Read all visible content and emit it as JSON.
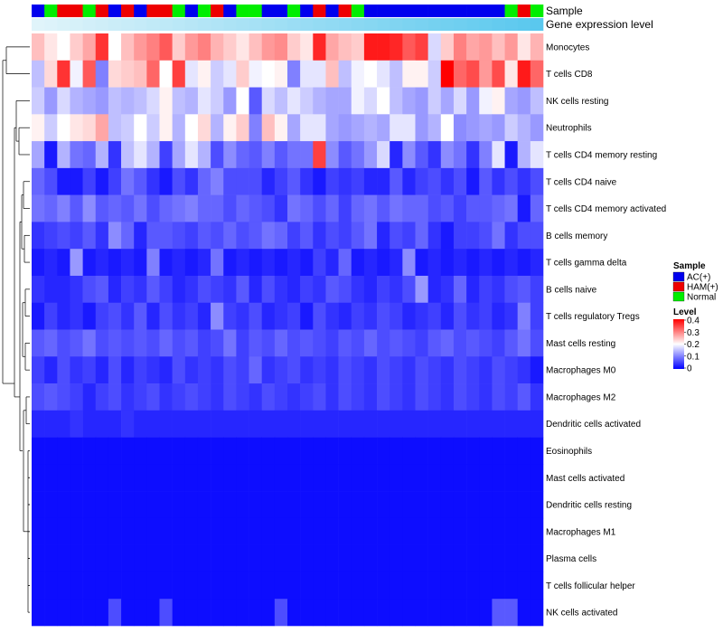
{
  "chart_data": {
    "type": "heatmap",
    "annotation_labels": {
      "sample": "Sample",
      "expression": "Gene expression level"
    },
    "sample_groups": [
      "AC(+)",
      "HAM(+)",
      "Normal"
    ],
    "sample_colors": {
      "AC(+)": "#0000ee",
      "HAM(+)": "#ee0000",
      "Normal": "#00ee00"
    },
    "column_samples": [
      "AC(+)",
      "Normal",
      "HAM(+)",
      "HAM(+)",
      "Normal",
      "HAM(+)",
      "AC(+)",
      "HAM(+)",
      "AC(+)",
      "HAM(+)",
      "HAM(+)",
      "Normal",
      "AC(+)",
      "Normal",
      "HAM(+)",
      "AC(+)",
      "Normal",
      "Normal",
      "AC(+)",
      "AC(+)",
      "Normal",
      "AC(+)",
      "HAM(+)",
      "AC(+)",
      "HAM(+)",
      "Normal",
      "AC(+)",
      "AC(+)",
      "AC(+)",
      "AC(+)",
      "AC(+)",
      "AC(+)",
      "AC(+)",
      "AC(+)",
      "AC(+)",
      "AC(+)",
      "AC(+)",
      "Normal",
      "HAM(+)",
      "Normal"
    ],
    "rows": [
      "Monocytes",
      "T cells CD8",
      "NK cells resting",
      "Neutrophils",
      "T cells CD4 memory resting",
      "T cells CD4 naive",
      "T cells CD4 memory activated",
      "B cells memory",
      "T cells gamma delta",
      "B cells naive",
      "T cells regulatory  Tregs",
      "Mast cells resting",
      "Macrophages M0",
      "Macrophages M2",
      "Dendritic cells activated",
      "Eosinophils",
      "Mast cells activated",
      "Dendritic cells resting",
      "Macrophages M1",
      "Plasma cells",
      "T cells follicular helper",
      "NK cells activated"
    ],
    "values": [
      [
        0.25,
        0.22,
        0.2,
        0.24,
        0.27,
        0.36,
        0.2,
        0.25,
        0.28,
        0.3,
        0.33,
        0.24,
        0.28,
        0.3,
        0.26,
        0.24,
        0.22,
        0.25,
        0.28,
        0.29,
        0.24,
        0.22,
        0.37,
        0.27,
        0.25,
        0.24,
        0.38,
        0.38,
        0.37,
        0.33,
        0.35,
        0.17,
        0.24,
        0.3,
        0.27,
        0.28,
        0.25,
        0.28,
        0.22,
        0.26
      ],
      [
        0.15,
        0.23,
        0.36,
        0.19,
        0.33,
        0.1,
        0.23,
        0.24,
        0.25,
        0.32,
        0.2,
        0.35,
        0.18,
        0.21,
        0.16,
        0.18,
        0.24,
        0.19,
        0.2,
        0.21,
        0.1,
        0.18,
        0.18,
        0.25,
        0.15,
        0.19,
        0.2,
        0.18,
        0.15,
        0.21,
        0.21,
        0.16,
        0.4,
        0.32,
        0.34,
        0.28,
        0.34,
        0.22,
        0.38,
        0.32
      ],
      [
        0.16,
        0.12,
        0.17,
        0.14,
        0.13,
        0.12,
        0.15,
        0.14,
        0.15,
        0.17,
        0.21,
        0.15,
        0.14,
        0.18,
        0.16,
        0.12,
        0.2,
        0.07,
        0.17,
        0.15,
        0.18,
        0.16,
        0.14,
        0.13,
        0.13,
        0.19,
        0.17,
        0.2,
        0.15,
        0.13,
        0.12,
        0.16,
        0.13,
        0.17,
        0.12,
        0.19,
        0.21,
        0.13,
        0.12,
        0.15
      ],
      [
        0.21,
        0.16,
        0.2,
        0.22,
        0.23,
        0.27,
        0.15,
        0.16,
        0.2,
        0.16,
        0.21,
        0.14,
        0.2,
        0.23,
        0.14,
        0.21,
        0.24,
        0.1,
        0.25,
        0.21,
        0.13,
        0.18,
        0.18,
        0.13,
        0.12,
        0.13,
        0.14,
        0.13,
        0.18,
        0.18,
        0.12,
        0.14,
        0.2,
        0.11,
        0.12,
        0.13,
        0.12,
        0.16,
        0.14,
        0.12
      ],
      [
        0.13,
        0.02,
        0.14,
        0.09,
        0.08,
        0.14,
        0.04,
        0.15,
        0.18,
        0.14,
        0.05,
        0.13,
        0.18,
        0.14,
        0.06,
        0.11,
        0.08,
        0.07,
        0.1,
        0.07,
        0.09,
        0.09,
        0.35,
        0.11,
        0.07,
        0.09,
        0.12,
        0.17,
        0.03,
        0.11,
        0.07,
        0.04,
        0.11,
        0.09,
        0.04,
        0.1,
        0.18,
        0.02,
        0.14,
        0.18
      ],
      [
        0.08,
        0.06,
        0.02,
        0.02,
        0.05,
        0.02,
        0.05,
        0.09,
        0.07,
        0.04,
        0.02,
        0.06,
        0.04,
        0.08,
        0.1,
        0.06,
        0.06,
        0.06,
        0.03,
        0.05,
        0.07,
        0.04,
        0.02,
        0.05,
        0.04,
        0.05,
        0.03,
        0.03,
        0.07,
        0.03,
        0.05,
        0.06,
        0.04,
        0.06,
        0.02,
        0.07,
        0.04,
        0.06,
        0.04,
        0.06
      ],
      [
        0.09,
        0.08,
        0.1,
        0.07,
        0.11,
        0.07,
        0.08,
        0.07,
        0.09,
        0.06,
        0.08,
        0.09,
        0.1,
        0.08,
        0.08,
        0.06,
        0.08,
        0.07,
        0.06,
        0.04,
        0.09,
        0.08,
        0.06,
        0.08,
        0.05,
        0.08,
        0.09,
        0.07,
        0.09,
        0.08,
        0.08,
        0.06,
        0.07,
        0.05,
        0.07,
        0.07,
        0.08,
        0.09,
        0.02,
        0.08
      ],
      [
        0.04,
        0.05,
        0.06,
        0.05,
        0.07,
        0.04,
        0.11,
        0.08,
        0.03,
        0.07,
        0.07,
        0.06,
        0.05,
        0.07,
        0.06,
        0.08,
        0.06,
        0.07,
        0.09,
        0.08,
        0.05,
        0.07,
        0.04,
        0.06,
        0.05,
        0.07,
        0.09,
        0.03,
        0.06,
        0.05,
        0.08,
        0.04,
        0.02,
        0.05,
        0.05,
        0.06,
        0.09,
        0.04,
        0.06,
        0.06
      ],
      [
        0.02,
        0.03,
        0.02,
        0.12,
        0.02,
        0.03,
        0.02,
        0.03,
        0.02,
        0.1,
        0.02,
        0.03,
        0.02,
        0.03,
        0.09,
        0.02,
        0.03,
        0.02,
        0.03,
        0.02,
        0.03,
        0.02,
        0.05,
        0.03,
        0.08,
        0.02,
        0.03,
        0.02,
        0.03,
        0.11,
        0.02,
        0.03,
        0.02,
        0.03,
        0.02,
        0.03,
        0.02,
        0.03,
        0.02,
        0.03
      ],
      [
        0.04,
        0.03,
        0.03,
        0.04,
        0.06,
        0.07,
        0.03,
        0.05,
        0.04,
        0.07,
        0.05,
        0.03,
        0.04,
        0.06,
        0.05,
        0.04,
        0.07,
        0.03,
        0.06,
        0.04,
        0.03,
        0.05,
        0.04,
        0.07,
        0.06,
        0.04,
        0.03,
        0.05,
        0.04,
        0.06,
        0.12,
        0.03,
        0.04,
        0.08,
        0.03,
        0.05,
        0.04,
        0.06,
        0.07,
        0.05
      ],
      [
        0.02,
        0.05,
        0.03,
        0.04,
        0.02,
        0.05,
        0.06,
        0.04,
        0.07,
        0.03,
        0.06,
        0.04,
        0.05,
        0.03,
        0.11,
        0.05,
        0.04,
        0.06,
        0.03,
        0.04,
        0.05,
        0.02,
        0.06,
        0.04,
        0.03,
        0.05,
        0.04,
        0.06,
        0.05,
        0.03,
        0.04,
        0.05,
        0.03,
        0.06,
        0.04,
        0.05,
        0.03,
        0.04,
        0.1,
        0.05
      ],
      [
        0.07,
        0.08,
        0.06,
        0.07,
        0.09,
        0.06,
        0.07,
        0.06,
        0.07,
        0.06,
        0.08,
        0.06,
        0.07,
        0.05,
        0.06,
        0.09,
        0.05,
        0.07,
        0.06,
        0.08,
        0.06,
        0.07,
        0.06,
        0.05,
        0.07,
        0.06,
        0.08,
        0.06,
        0.07,
        0.06,
        0.05,
        0.07,
        0.08,
        0.06,
        0.07,
        0.06,
        0.05,
        0.07,
        0.09,
        0.06
      ],
      [
        0.05,
        0.03,
        0.06,
        0.04,
        0.05,
        0.03,
        0.06,
        0.03,
        0.05,
        0.04,
        0.03,
        0.06,
        0.04,
        0.05,
        0.04,
        0.06,
        0.05,
        0.08,
        0.04,
        0.05,
        0.06,
        0.04,
        0.05,
        0.04,
        0.06,
        0.05,
        0.04,
        0.06,
        0.05,
        0.04,
        0.06,
        0.05,
        0.04,
        0.06,
        0.05,
        0.04,
        0.06,
        0.05,
        0.04,
        0.02
      ],
      [
        0.06,
        0.07,
        0.06,
        0.05,
        0.03,
        0.05,
        0.06,
        0.04,
        0.05,
        0.06,
        0.04,
        0.05,
        0.06,
        0.05,
        0.04,
        0.06,
        0.05,
        0.04,
        0.06,
        0.05,
        0.04,
        0.05,
        0.06,
        0.04,
        0.06,
        0.05,
        0.04,
        0.06,
        0.05,
        0.04,
        0.06,
        0.05,
        0.04,
        0.06,
        0.05,
        0.04,
        0.06,
        0.05,
        0.07,
        0.04
      ],
      [
        0.03,
        0.03,
        0.03,
        0.04,
        0.03,
        0.03,
        0.03,
        0.04,
        0.03,
        0.03,
        0.03,
        0.03,
        0.03,
        0.03,
        0.03,
        0.03,
        0.03,
        0.03,
        0.03,
        0.03,
        0.03,
        0.03,
        0.03,
        0.03,
        0.03,
        0.03,
        0.03,
        0.03,
        0.03,
        0.03,
        0.03,
        0.03,
        0.03,
        0.03,
        0.03,
        0.03,
        0.03,
        0.03,
        0.03,
        0.03
      ],
      [
        0.01,
        0.01,
        0.01,
        0.01,
        0.01,
        0.01,
        0.01,
        0.01,
        0.01,
        0.01,
        0.01,
        0.01,
        0.01,
        0.01,
        0.01,
        0.01,
        0.01,
        0.01,
        0.01,
        0.01,
        0.01,
        0.01,
        0.01,
        0.01,
        0.01,
        0.01,
        0.01,
        0.01,
        0.01,
        0.01,
        0.01,
        0.01,
        0.01,
        0.01,
        0.01,
        0.01,
        0.01,
        0.01,
        0.01,
        0.01
      ],
      [
        0.01,
        0.01,
        0.01,
        0.01,
        0.01,
        0.01,
        0.01,
        0.01,
        0.01,
        0.01,
        0.01,
        0.01,
        0.01,
        0.01,
        0.01,
        0.01,
        0.01,
        0.01,
        0.01,
        0.01,
        0.01,
        0.01,
        0.01,
        0.01,
        0.01,
        0.01,
        0.01,
        0.01,
        0.01,
        0.01,
        0.01,
        0.01,
        0.01,
        0.01,
        0.01,
        0.01,
        0.01,
        0.01,
        0.01,
        0.01
      ],
      [
        0.01,
        0.01,
        0.01,
        0.01,
        0.01,
        0.01,
        0.01,
        0.01,
        0.01,
        0.01,
        0.01,
        0.01,
        0.01,
        0.01,
        0.01,
        0.01,
        0.01,
        0.01,
        0.01,
        0.01,
        0.01,
        0.01,
        0.01,
        0.01,
        0.01,
        0.01,
        0.01,
        0.01,
        0.01,
        0.01,
        0.01,
        0.01,
        0.01,
        0.01,
        0.01,
        0.01,
        0.01,
        0.01,
        0.01,
        0.01
      ],
      [
        0.01,
        0.01,
        0.01,
        0.01,
        0.01,
        0.01,
        0.01,
        0.01,
        0.01,
        0.01,
        0.01,
        0.01,
        0.01,
        0.01,
        0.01,
        0.01,
        0.01,
        0.01,
        0.01,
        0.01,
        0.01,
        0.01,
        0.01,
        0.01,
        0.01,
        0.01,
        0.01,
        0.01,
        0.01,
        0.01,
        0.01,
        0.01,
        0.01,
        0.01,
        0.01,
        0.01,
        0.01,
        0.01,
        0.01,
        0.01
      ],
      [
        0.01,
        0.01,
        0.01,
        0.01,
        0.01,
        0.01,
        0.01,
        0.01,
        0.01,
        0.01,
        0.01,
        0.01,
        0.01,
        0.01,
        0.01,
        0.01,
        0.01,
        0.01,
        0.01,
        0.01,
        0.01,
        0.01,
        0.01,
        0.01,
        0.01,
        0.01,
        0.01,
        0.01,
        0.01,
        0.01,
        0.01,
        0.01,
        0.01,
        0.01,
        0.01,
        0.01,
        0.01,
        0.01,
        0.01,
        0.01
      ],
      [
        0.01,
        0.01,
        0.01,
        0.01,
        0.01,
        0.01,
        0.01,
        0.01,
        0.01,
        0.01,
        0.01,
        0.01,
        0.01,
        0.01,
        0.01,
        0.01,
        0.01,
        0.01,
        0.01,
        0.01,
        0.01,
        0.01,
        0.01,
        0.01,
        0.01,
        0.01,
        0.01,
        0.01,
        0.01,
        0.01,
        0.01,
        0.01,
        0.01,
        0.01,
        0.01,
        0.01,
        0.01,
        0.01,
        0.01,
        0.01
      ],
      [
        0.01,
        0.01,
        0.01,
        0.01,
        0.01,
        0.01,
        0.06,
        0.01,
        0.01,
        0.01,
        0.06,
        0.01,
        0.01,
        0.01,
        0.01,
        0.01,
        0.01,
        0.01,
        0.01,
        0.06,
        0.01,
        0.01,
        0.01,
        0.01,
        0.01,
        0.01,
        0.01,
        0.01,
        0.01,
        0.01,
        0.01,
        0.01,
        0.01,
        0.01,
        0.01,
        0.01,
        0.07,
        0.07,
        0.01,
        0.01
      ]
    ],
    "color_scale": {
      "min": 0,
      "mid": 0.2,
      "max": 0.4,
      "low": "#0000ff",
      "midcolor": "#ffffff",
      "high": "#ff0000"
    },
    "legend": {
      "sample_title": "Sample",
      "level_title": "Level",
      "level_ticks": [
        "0.4",
        "0.3",
        "0.2",
        "0.1",
        "0"
      ],
      "position": "right"
    },
    "row_dendrogram": true
  }
}
